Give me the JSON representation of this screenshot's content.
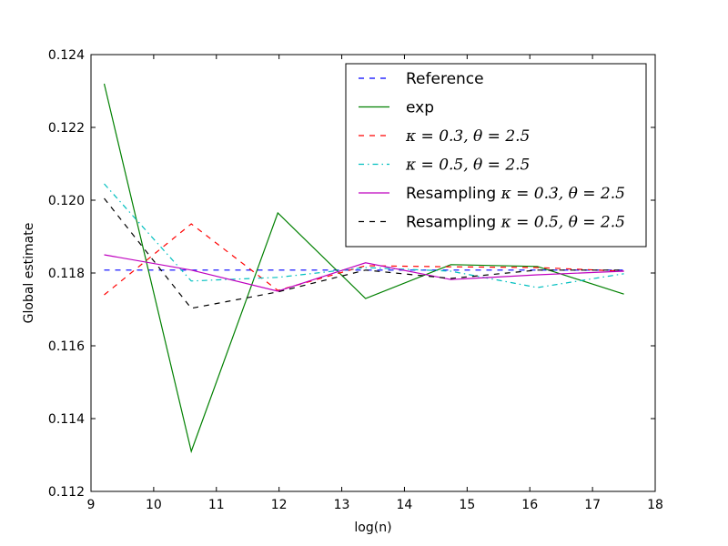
{
  "chart_data": {
    "type": "line",
    "title": "",
    "xlabel": "log(n)",
    "ylabel": "Global estimate",
    "xlim": [
      9,
      18
    ],
    "ylim": [
      0.112,
      0.124
    ],
    "xticks": [
      "9",
      "10",
      "11",
      "12",
      "13",
      "14",
      "15",
      "16",
      "17",
      "18"
    ],
    "yticks": [
      "0.112",
      "0.114",
      "0.116",
      "0.118",
      "0.120",
      "0.122",
      "0.124"
    ],
    "legend_position": "top-right",
    "x": [
      9.21,
      10.6,
      11.98,
      13.38,
      14.74,
      16.12,
      17.5
    ],
    "series": [
      {
        "name": "Reference",
        "text": "Reference",
        "math": "",
        "color": "#0000ff",
        "style": "dashed",
        "values": [
          0.11808,
          0.11808,
          0.11808,
          0.11808,
          0.11808,
          0.11808,
          0.11808
        ]
      },
      {
        "name": "exp",
        "text": "exp",
        "math": "",
        "color": "#008000",
        "style": "solid",
        "values": [
          0.1232,
          0.1131,
          0.11965,
          0.1173,
          0.11823,
          0.11818,
          0.11742
        ]
      },
      {
        "name": "kappa-0.3-theta-2.5",
        "text": "",
        "math": "κ = 0.3, θ = 2.5",
        "color": "#ff0000",
        "style": "dashed",
        "values": [
          0.1174,
          0.11935,
          0.11752,
          0.1182,
          0.11817,
          0.11815,
          0.11805
        ]
      },
      {
        "name": "kappa-0.5-theta-2.5",
        "text": "",
        "math": "κ = 0.5, θ = 2.5",
        "color": "#00bfbf",
        "style": "dashdot",
        "values": [
          0.12045,
          0.11778,
          0.11788,
          0.11815,
          0.11805,
          0.1176,
          0.11798
        ]
      },
      {
        "name": "resampling-kappa-0.3-theta-2.5",
        "text": "Resampling ",
        "math": "κ = 0.3, θ = 2.5",
        "color": "#bf00bf",
        "style": "solid",
        "values": [
          0.1185,
          0.11808,
          0.1175,
          0.11828,
          0.11782,
          0.11795,
          0.11805
        ]
      },
      {
        "name": "resampling-kappa-0.5-theta-2.5",
        "text": "Resampling ",
        "math": "κ = 0.5, θ = 2.5",
        "color": "#000000",
        "style": "dashed",
        "values": [
          0.12005,
          0.11703,
          0.11748,
          0.11808,
          0.11785,
          0.11808,
          0.11808
        ]
      }
    ]
  }
}
